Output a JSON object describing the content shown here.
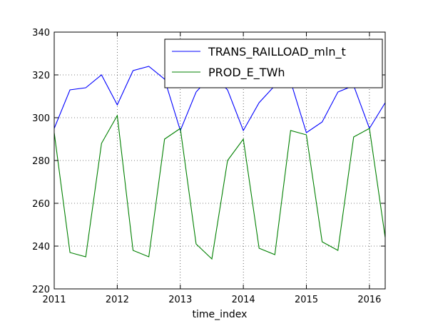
{
  "chart_data": {
    "type": "line",
    "title": "",
    "xlabel": "time_index",
    "ylabel": "",
    "xlim": [
      2011.0,
      2016.25
    ],
    "ylim": [
      220,
      340
    ],
    "grid": true,
    "legend_position": "top-right",
    "x_ticks": [
      2011,
      2012,
      2013,
      2014,
      2015,
      2016
    ],
    "y_ticks": [
      220,
      240,
      260,
      280,
      300,
      320,
      340
    ],
    "x": [
      2011.0,
      2011.25,
      2011.5,
      2011.75,
      2012.0,
      2012.25,
      2012.5,
      2012.75,
      2013.0,
      2013.25,
      2013.5,
      2013.75,
      2014.0,
      2014.25,
      2014.5,
      2014.75,
      2015.0,
      2015.25,
      2015.5,
      2015.75,
      2016.0,
      2016.25
    ],
    "series": [
      {
        "name": "TRANS_RAILLOAD_mln_t",
        "color": "#0000ff",
        "values": [
          295,
          313,
          314,
          320,
          306,
          322,
          324,
          318,
          294,
          312,
          320,
          313,
          294,
          307,
          315,
          317,
          293,
          298,
          312,
          315,
          295,
          307
        ]
      },
      {
        "name": "PROD_E_TWh",
        "color": "#008000",
        "values": [
          293,
          237,
          235,
          288,
          301,
          238,
          235,
          290,
          295,
          241,
          234,
          280,
          290,
          239,
          236,
          294,
          292,
          242,
          238,
          291,
          295,
          244
        ]
      }
    ]
  }
}
